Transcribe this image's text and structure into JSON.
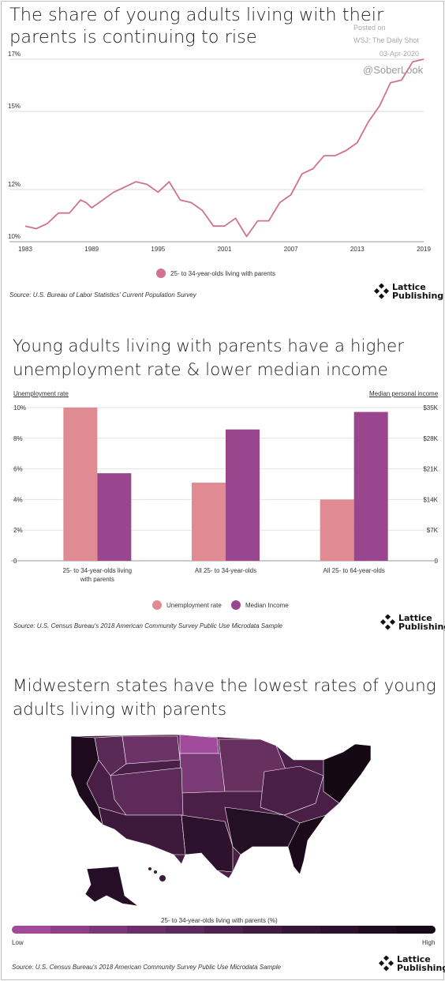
{
  "chart1": {
    "title": "The share of young adults living with their parents is continuing to rise",
    "legend": "25- to 34-year-olds living with parents",
    "source": "Source: U.S. Bureau of Labor Statistics' Current Population Survey",
    "color": "#d0728f",
    "chart_data": {
      "type": "line",
      "x_ticks": [
        "1983",
        "1989",
        "1995",
        "2001",
        "2007",
        "2013",
        "2019"
      ],
      "y_ticks": [
        "10%",
        "12%",
        "15%",
        "17%"
      ],
      "ylim": [
        10,
        17
      ],
      "xlim": [
        1983,
        2019
      ],
      "series": [
        {
          "name": "25- to 34-year-olds living with parents",
          "x": [
            1983,
            1984,
            1985,
            1986,
            1987,
            1988,
            1988.5,
            1989,
            1990,
            1991,
            1992,
            1993,
            1994,
            1995,
            1996,
            1997,
            1998,
            1999,
            2000,
            2001,
            2002,
            2003,
            2004,
            2005,
            2006,
            2007,
            2008,
            2009,
            2010,
            2011,
            2012,
            2013,
            2014,
            2015,
            2016,
            2017,
            2018,
            2019
          ],
          "y": [
            10.6,
            10.5,
            10.7,
            11.1,
            11.1,
            11.6,
            11.5,
            11.3,
            11.6,
            11.9,
            12.1,
            12.3,
            12.2,
            11.9,
            12.3,
            11.6,
            11.5,
            11.2,
            10.6,
            10.6,
            10.9,
            10.2,
            10.8,
            10.8,
            11.5,
            11.8,
            12.6,
            12.8,
            13.3,
            13.3,
            13.5,
            13.8,
            14.6,
            15.2,
            16.1,
            16.2,
            16.9,
            17.0
          ]
        }
      ]
    }
  },
  "chart2": {
    "title": "Young adults living with parents have a higher unemployment rate & lower median income",
    "left_axis_title": "Unemployment rate",
    "right_axis_title": "Median personal income",
    "legend_unemployment": "Unemployment rate",
    "legend_income": "Median Income",
    "source": "Source: U.S. Census Bureau's 2018 American Community Survey Public Use Microdata Sample",
    "colors": {
      "unemployment": "#e08a94",
      "income": "#9a468e"
    },
    "chart_data": {
      "type": "bar",
      "categories": [
        "25- to 34-year-olds living with parents",
        "All 25- to 34-year-olds",
        "All 25- to 64-year-olds"
      ],
      "category_labels_wrapped": [
        [
          "25- to 34-year-olds living",
          "with parents"
        ],
        [
          "All 25- to 34-year-olds"
        ],
        [
          "All 25- to 64-year-olds"
        ]
      ],
      "left_ticks": [
        "10%",
        "8%",
        "6%",
        "4%",
        "2%",
        "0"
      ],
      "right_ticks": [
        "$35K",
        "$28K",
        "$21K",
        "$14K",
        "$7K",
        "0"
      ],
      "ylim_left": [
        0,
        10
      ],
      "ylim_right": [
        0,
        35000
      ],
      "series": [
        {
          "name": "Unemployment rate",
          "axis": "left",
          "values": [
            10.0,
            5.1,
            4.0
          ]
        },
        {
          "name": "Median Income",
          "axis": "right",
          "values": [
            20000,
            30000,
            34000
          ]
        }
      ]
    }
  },
  "chart3": {
    "title": "Midwestern states have the lowest rates of young adults living with parents",
    "scale_title": "25- to 34-year-olds living with parents (%)",
    "scale_low": "Low",
    "scale_high": "High",
    "source": "Source: U.S. Census Bureau's 2018 American Community Survey Public Use Microdata Sample",
    "scale_colors": [
      "#a14a9b",
      "#8e3f8a",
      "#7c3679",
      "#6c2e69",
      "#5d285b",
      "#4f214e",
      "#421b42",
      "#361636",
      "#2b112b",
      "#200c20",
      "#160816"
    ]
  },
  "watermark": {
    "line1": "Posted on",
    "line2": "WSJ: The Daily Shot",
    "line3": "03-Apr-2020",
    "handle": "@SoberLook"
  },
  "logo": {
    "line1": "Lattice",
    "line2": "Publishing"
  }
}
